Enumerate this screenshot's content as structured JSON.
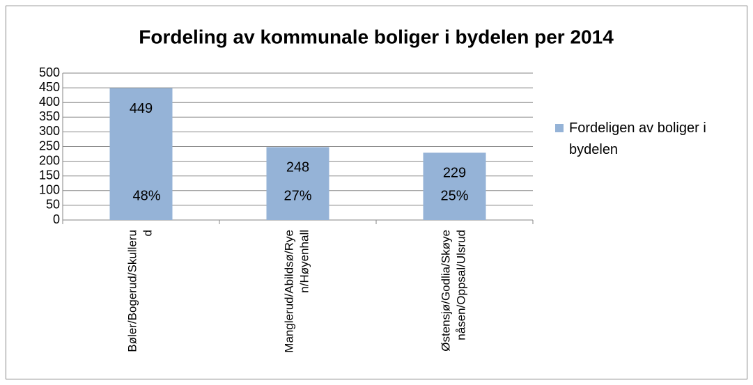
{
  "chart_data": {
    "type": "bar",
    "title": "Fordeling av kommunale boliger i bydelen per 2014",
    "categories": [
      "Bøler/Bogerud/Skullerud",
      "Manglerud/Abildsø/Ryen/Høyenhall",
      "Østensjø/Godlia/Skøyenåsen/Oppsal/Ulsrud"
    ],
    "series": [
      {
        "name": "Fordeligen av boliger i bydelen",
        "color": "#95b3d7",
        "values": [
          449,
          248,
          229
        ]
      }
    ],
    "percentages": [
      48,
      27,
      25
    ],
    "percentage_labels": [
      "48%",
      "27%",
      "25%"
    ],
    "ylim": [
      0,
      500
    ],
    "yticks": [
      0,
      50,
      100,
      150,
      200,
      250,
      300,
      350,
      400,
      450,
      500
    ],
    "grid": true,
    "legend": "right"
  }
}
